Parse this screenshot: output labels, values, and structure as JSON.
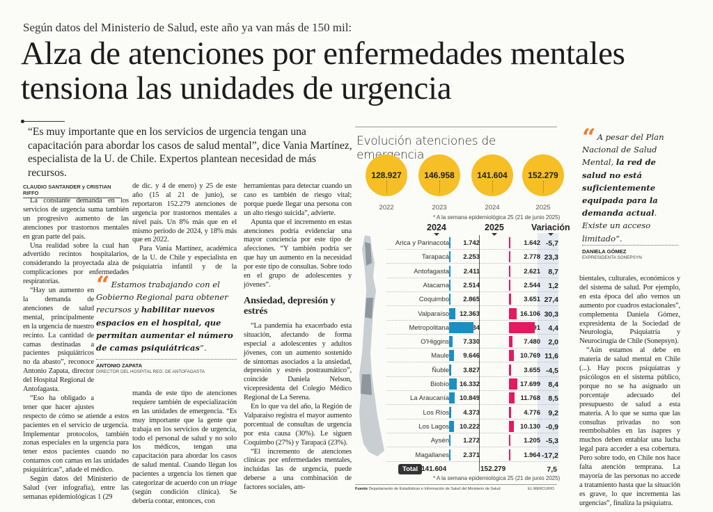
{
  "kicker": "Según datos del Ministerio de Salud, este año ya van más de 150 mil:",
  "headline": "Alza de atenciones por enfermedades mentales tensiona las unidades de urgencia",
  "deck": "“Es muy importante que en los servicios de urgencia tengan una capacitación para abordar los casos de salud mental”, dice Vania Martínez, especialista de la U. de Chile. Expertos plantean necesidad de más recursos.",
  "byline": "CLAUDIO SANTANDER y CRISTIAN RIFFO",
  "col1": {
    "p1": "La constante demanda en los servicios de urgencia suma también un progresivo aumento de las atenciones por trastornos mentales en gran parte del país.",
    "p2": "Una realidad sobre la cual han advertido recintos hospitalarios, considerando la proyectada alza de complicaciones por enfermedades respiratorias.",
    "p3": "“Hay un aumento en la demanda de atenciones de salud mental, principalmente en la urgencia de nuestro recinto. La cantidad de camas destinadas a pacientes psiquiátricos no da abasto”, reconoce Antonio Zapata, director del Hospital Regional de Antofagasta.",
    "p4": "“Eso ha obligado a tener que hacer ajustes respecto de cómo se atiende a estos pacientes en el servicio de urgencia. Implementar protocolos, también zonas especiales en la urgencia para tener estos pacientes cuando no contamos con camas en las unidades psiquiátricas”, añade el médico.",
    "p5": "Según datos del Ministerio de Salud (ver infografía), entre las semanas epidemiológicas 1 (29"
  },
  "col2": {
    "p1": "de dic. y 4 de enero) y 25 de este año (15 al 21 de junio), se reportaron 152.279 atenciones de urgencia por trastornos mentales a nivel país. Un 8% más que en el mismo período de 2024, y 18% más que en 2022.",
    "p2": "Para Vania Martínez, académica de la U. de Chile y especialista en psiquiatría infantil y de la adolescencia, la creciente de-",
    "p3_a": "manda de este tipo de atenciones requiere también de especialización en las unidades de emergencia. “Es muy importante que la gente que trabaja en los servicios de urgencia, todo el personal de salud y no solo los médicos, tengan una capacitación para abordar los casos de salud mental. Cuando llegan los pacientes a urgencia los tienen que categorizar de acuerdo con un ",
    "p3_italic": "triage",
    "p3_b": " (según condición clínica). Se debería contar, entonces, con"
  },
  "col3": {
    "p1": "herramientas para detectar cuando un caso es también de riesgo vital; porque puede llegar una persona con un alto riesgo suicida”, advierte.",
    "p2": "Apunta que el incremento en estas atenciones podría evidenciar una mayor conciencia por este tipo de afecciones. “Y también podría ser que hay un aumento en la necesidad por este tipo de consultas. Sobre todo en el grupo de adolescentes y jóvenes”.",
    "subhead": "Ansiedad, depresión y estrés",
    "p3": "“La pandemia ha exacerbado esta situación, afectando de forma especial a adolescentes y adultos jóvenes, con un aumento sostenido de síntomas asociados a la ansiedad, depresión y estrés postraumático”, coincide Daniela Nelson, vicepresidenta del Colegio Médico Regional de La Serena.",
    "p4": "En lo que va del año, la Región de Valparaíso registra el mayor aumento porcentual de consultas de urgencia por esta causa (30%). Le siguen Coquimbo (27%) y Tarapacá (23%).",
    "p5": "“El incremento de atenciones clínicas por enfermedades mentales, incluidas las de urgencia, puede deberse a una combinación de factores sociales, am-"
  },
  "col4": {
    "p1": "bientales, culturales, económicos y del sistema de salud. Por ejemplo, en esta época del año vemos un aumento por cuadros estacionales”, complementa Daniela Gómez, expresidenta de la Sociedad de Neurología, Psiquiatría y Neurocirugía de Chile (Sonepsyn).",
    "p2": "“Aún estamos al debe en materia de salud mental en Chile (...). Hay pocos psiquiatras y psicólogos en el sistema público, porque no se ha asignado un porcentaje adecuado del presupuesto de salud a esta materia. A lo que se suma que las consultas privadas no son reembolsables en las isapres y muchos deben entablar una lucha legal para acceder a esa cobertura. Pero sobre todo, en Chile nos hace falta atención temprana. La mayoría de las personas no accede a tratamiento hasta que la situación es grave, lo que incrementa las urgencias”, finaliza la psiquiatra."
  },
  "quote1": {
    "text_a": "Estamos trabajando con el Gobierno Regional para obtener recursos y ",
    "text_bold": "habilitar nuevos espacios en el hospital, que permitan aumentar el número de camas psiquiátricas",
    "text_b": "”.",
    "name": "ANTONIO ZAPATA",
    "role": "DIRECTOR DEL HOSPITAL REG. DE ANTOFAGASTA"
  },
  "quote2": {
    "text_a": "A pesar del Plan Nacional de Salud Mental, ",
    "text_bold": "la red de salud no está suficientemente equipada para la demanda actual",
    "text_b": ". Existe un acceso limitado”.",
    "name": "DANIELA GÓMEZ",
    "role": "EXPRESIDENTA SONEPSYN"
  },
  "chart_data": {
    "type": "table",
    "title": "Evolución atenciones de emergencia",
    "yearly": {
      "years": [
        "2022",
        "2023",
        "2024",
        "2025"
      ],
      "values_display": [
        "128.927",
        "146.958",
        "141.604",
        "152.279"
      ],
      "values": [
        128927,
        146958,
        141604,
        152279
      ]
    },
    "footnote": "* A la semana epidemiológica 25 (21 de junio 2025)",
    "headers": {
      "y2024": "2024",
      "y2025": "2025",
      "variation": "Variación"
    },
    "regions": [
      {
        "name": "Arica y Parinacota",
        "v2024": "1.742",
        "v2025": "1.642",
        "var": "-5,7",
        "n2024": 1742,
        "n2025": 1642
      },
      {
        "name": "Tarapacá",
        "v2024": "2.253",
        "v2025": "2.778",
        "var": "23,3",
        "n2024": 2253,
        "n2025": 2778
      },
      {
        "name": "Antofagasta",
        "v2024": "2.411",
        "v2025": "2.621",
        "var": "8,7",
        "n2024": 2411,
        "n2025": 2621
      },
      {
        "name": "Atacama",
        "v2024": "2.514",
        "v2025": "2.544",
        "var": "1,2",
        "n2024": 2514,
        "n2025": 2544
      },
      {
        "name": "Coquimbo",
        "v2024": "2.865",
        "v2025": "3.651",
        "var": "27,4",
        "n2024": 2865,
        "n2025": 3651
      },
      {
        "name": "Valparaíso",
        "v2024": "12.363",
        "v2025": "16.106",
        "var": "30,3",
        "n2024": 12363,
        "n2025": 16106
      },
      {
        "name": "Metropolitana",
        "v2024": "51.234",
        "v2025": "53.491",
        "var": "4,4",
        "n2024": 51234,
        "n2025": 53491
      },
      {
        "name": "O'Higgins",
        "v2024": "7.330",
        "v2025": "7.480",
        "var": "2,0",
        "n2024": 7330,
        "n2025": 7480
      },
      {
        "name": "Maule",
        "v2024": "9.646",
        "v2025": "10.769",
        "var": "11,6",
        "n2024": 9646,
        "n2025": 10769
      },
      {
        "name": "Ñuble",
        "v2024": "3.827",
        "v2025": "3.655",
        "var": "-4,5",
        "n2024": 3827,
        "n2025": 3655
      },
      {
        "name": "Biobío",
        "v2024": "16.332",
        "v2025": "17.699",
        "var": "8,4",
        "n2024": 16332,
        "n2025": 17699
      },
      {
        "name": "La Araucanía",
        "v2024": "10.849",
        "v2025": "11.768",
        "var": "8,5",
        "n2024": 10849,
        "n2025": 11768
      },
      {
        "name": "Los Ríos",
        "v2024": "4.373",
        "v2025": "4.776",
        "var": "9,2",
        "n2024": 4373,
        "n2025": 4776
      },
      {
        "name": "Los Lagos",
        "v2024": "10.222",
        "v2025": "10.130",
        "var": "-0,9",
        "n2024": 10222,
        "n2025": 10130
      },
      {
        "name": "Aysén",
        "v2024": "1.272",
        "v2025": "1.205",
        "var": "-5,3",
        "n2024": 1272,
        "n2025": 1205
      },
      {
        "name": "Magallanes",
        "v2024": "2.371",
        "v2025": "1.964",
        "var": "-17,2",
        "n2024": 2371,
        "n2025": 1964
      }
    ],
    "total": {
      "label": "Total",
      "v2024": "141.604",
      "v2025": "152.279",
      "var": "7,5"
    },
    "source_label": "Fuente",
    "source": "Departamento de Estadísticas e Información de Salud del Ministerio de Salud",
    "brand": "EL MERCURIO",
    "colors": {
      "circle": "#f6bf26",
      "bar2024": "#1a8fc4",
      "bar2025": "#e4195f",
      "quote": "#ee7c30"
    }
  }
}
